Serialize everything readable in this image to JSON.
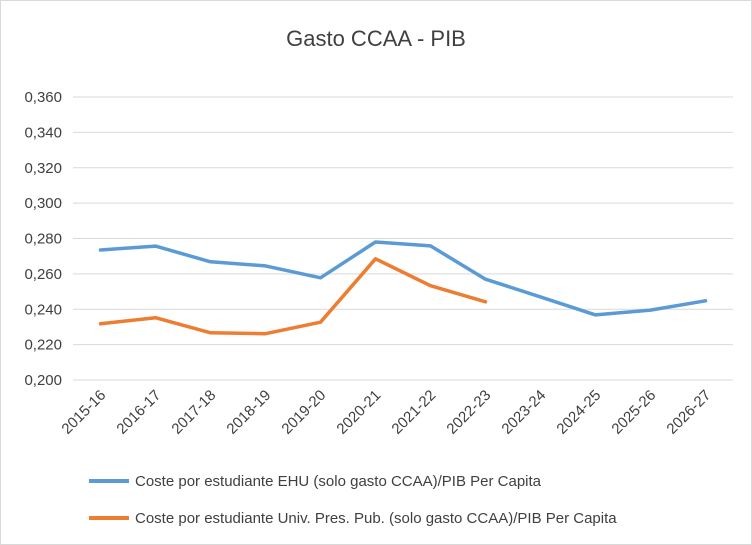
{
  "chart_data": {
    "type": "line",
    "title": "Gasto CCAA - PIB",
    "xlabel": "",
    "ylabel": "",
    "ylim": [
      0.2,
      0.36
    ],
    "y_ticks": [
      "0,200",
      "0,220",
      "0,240",
      "0,260",
      "0,280",
      "0,300",
      "0,320",
      "0,340",
      "0,360"
    ],
    "grid": true,
    "legend_position": "bottom",
    "categories": [
      "2015-16",
      "2016-17",
      "2017-18",
      "2018-19",
      "2019-20",
      "2020-21",
      "2021-22",
      "2022-23",
      "2023-24",
      "2024-25",
      "2025-26",
      "2026-27"
    ],
    "series": [
      {
        "name": "Coste por estudiante EHU (solo gasto CCAA)/PIB Per Capita",
        "color": "#5b9bd5",
        "values": [
          0.2735,
          0.2757,
          0.2668,
          0.2645,
          0.2578,
          0.278,
          0.2758,
          0.257,
          0.247,
          0.2368,
          0.2395,
          0.2448
        ]
      },
      {
        "name": "Coste por estudiante Univ. Pres. Pub. (solo gasto CCAA)/PIB Per Capita",
        "color": "#ed7d31",
        "values": [
          0.2318,
          0.2352,
          0.2267,
          0.2262,
          0.2327,
          0.2685,
          0.2533,
          0.2442,
          null,
          null,
          null,
          null
        ]
      }
    ]
  }
}
